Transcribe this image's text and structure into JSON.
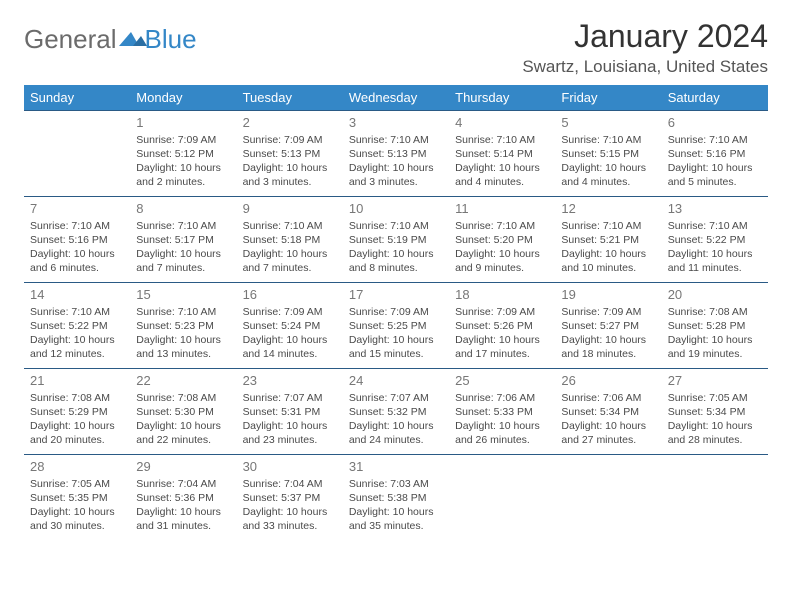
{
  "brand": {
    "general": "General",
    "blue": "Blue",
    "swoosh_color": "#3487c7"
  },
  "title": "January 2024",
  "location": "Swartz, Louisiana, United States",
  "header_bg": "#3487c7",
  "header_fg": "#ffffff",
  "row_border_color": "#2a5a85",
  "text_color": "#4a4a4a",
  "title_color": "#333333",
  "location_color": "#555555",
  "day_headers": [
    "Sunday",
    "Monday",
    "Tuesday",
    "Wednesday",
    "Thursday",
    "Friday",
    "Saturday"
  ],
  "weeks": [
    [
      {
        "day": "",
        "sunrise": "",
        "sunset": "",
        "daylight": ""
      },
      {
        "day": "1",
        "sunrise": "Sunrise: 7:09 AM",
        "sunset": "Sunset: 5:12 PM",
        "daylight": "Daylight: 10 hours and 2 minutes."
      },
      {
        "day": "2",
        "sunrise": "Sunrise: 7:09 AM",
        "sunset": "Sunset: 5:13 PM",
        "daylight": "Daylight: 10 hours and 3 minutes."
      },
      {
        "day": "3",
        "sunrise": "Sunrise: 7:10 AM",
        "sunset": "Sunset: 5:13 PM",
        "daylight": "Daylight: 10 hours and 3 minutes."
      },
      {
        "day": "4",
        "sunrise": "Sunrise: 7:10 AM",
        "sunset": "Sunset: 5:14 PM",
        "daylight": "Daylight: 10 hours and 4 minutes."
      },
      {
        "day": "5",
        "sunrise": "Sunrise: 7:10 AM",
        "sunset": "Sunset: 5:15 PM",
        "daylight": "Daylight: 10 hours and 4 minutes."
      },
      {
        "day": "6",
        "sunrise": "Sunrise: 7:10 AM",
        "sunset": "Sunset: 5:16 PM",
        "daylight": "Daylight: 10 hours and 5 minutes."
      }
    ],
    [
      {
        "day": "7",
        "sunrise": "Sunrise: 7:10 AM",
        "sunset": "Sunset: 5:16 PM",
        "daylight": "Daylight: 10 hours and 6 minutes."
      },
      {
        "day": "8",
        "sunrise": "Sunrise: 7:10 AM",
        "sunset": "Sunset: 5:17 PM",
        "daylight": "Daylight: 10 hours and 7 minutes."
      },
      {
        "day": "9",
        "sunrise": "Sunrise: 7:10 AM",
        "sunset": "Sunset: 5:18 PM",
        "daylight": "Daylight: 10 hours and 7 minutes."
      },
      {
        "day": "10",
        "sunrise": "Sunrise: 7:10 AM",
        "sunset": "Sunset: 5:19 PM",
        "daylight": "Daylight: 10 hours and 8 minutes."
      },
      {
        "day": "11",
        "sunrise": "Sunrise: 7:10 AM",
        "sunset": "Sunset: 5:20 PM",
        "daylight": "Daylight: 10 hours and 9 minutes."
      },
      {
        "day": "12",
        "sunrise": "Sunrise: 7:10 AM",
        "sunset": "Sunset: 5:21 PM",
        "daylight": "Daylight: 10 hours and 10 minutes."
      },
      {
        "day": "13",
        "sunrise": "Sunrise: 7:10 AM",
        "sunset": "Sunset: 5:22 PM",
        "daylight": "Daylight: 10 hours and 11 minutes."
      }
    ],
    [
      {
        "day": "14",
        "sunrise": "Sunrise: 7:10 AM",
        "sunset": "Sunset: 5:22 PM",
        "daylight": "Daylight: 10 hours and 12 minutes."
      },
      {
        "day": "15",
        "sunrise": "Sunrise: 7:10 AM",
        "sunset": "Sunset: 5:23 PM",
        "daylight": "Daylight: 10 hours and 13 minutes."
      },
      {
        "day": "16",
        "sunrise": "Sunrise: 7:09 AM",
        "sunset": "Sunset: 5:24 PM",
        "daylight": "Daylight: 10 hours and 14 minutes."
      },
      {
        "day": "17",
        "sunrise": "Sunrise: 7:09 AM",
        "sunset": "Sunset: 5:25 PM",
        "daylight": "Daylight: 10 hours and 15 minutes."
      },
      {
        "day": "18",
        "sunrise": "Sunrise: 7:09 AM",
        "sunset": "Sunset: 5:26 PM",
        "daylight": "Daylight: 10 hours and 17 minutes."
      },
      {
        "day": "19",
        "sunrise": "Sunrise: 7:09 AM",
        "sunset": "Sunset: 5:27 PM",
        "daylight": "Daylight: 10 hours and 18 minutes."
      },
      {
        "day": "20",
        "sunrise": "Sunrise: 7:08 AM",
        "sunset": "Sunset: 5:28 PM",
        "daylight": "Daylight: 10 hours and 19 minutes."
      }
    ],
    [
      {
        "day": "21",
        "sunrise": "Sunrise: 7:08 AM",
        "sunset": "Sunset: 5:29 PM",
        "daylight": "Daylight: 10 hours and 20 minutes."
      },
      {
        "day": "22",
        "sunrise": "Sunrise: 7:08 AM",
        "sunset": "Sunset: 5:30 PM",
        "daylight": "Daylight: 10 hours and 22 minutes."
      },
      {
        "day": "23",
        "sunrise": "Sunrise: 7:07 AM",
        "sunset": "Sunset: 5:31 PM",
        "daylight": "Daylight: 10 hours and 23 minutes."
      },
      {
        "day": "24",
        "sunrise": "Sunrise: 7:07 AM",
        "sunset": "Sunset: 5:32 PM",
        "daylight": "Daylight: 10 hours and 24 minutes."
      },
      {
        "day": "25",
        "sunrise": "Sunrise: 7:06 AM",
        "sunset": "Sunset: 5:33 PM",
        "daylight": "Daylight: 10 hours and 26 minutes."
      },
      {
        "day": "26",
        "sunrise": "Sunrise: 7:06 AM",
        "sunset": "Sunset: 5:34 PM",
        "daylight": "Daylight: 10 hours and 27 minutes."
      },
      {
        "day": "27",
        "sunrise": "Sunrise: 7:05 AM",
        "sunset": "Sunset: 5:34 PM",
        "daylight": "Daylight: 10 hours and 28 minutes."
      }
    ],
    [
      {
        "day": "28",
        "sunrise": "Sunrise: 7:05 AM",
        "sunset": "Sunset: 5:35 PM",
        "daylight": "Daylight: 10 hours and 30 minutes."
      },
      {
        "day": "29",
        "sunrise": "Sunrise: 7:04 AM",
        "sunset": "Sunset: 5:36 PM",
        "daylight": "Daylight: 10 hours and 31 minutes."
      },
      {
        "day": "30",
        "sunrise": "Sunrise: 7:04 AM",
        "sunset": "Sunset: 5:37 PM",
        "daylight": "Daylight: 10 hours and 33 minutes."
      },
      {
        "day": "31",
        "sunrise": "Sunrise: 7:03 AM",
        "sunset": "Sunset: 5:38 PM",
        "daylight": "Daylight: 10 hours and 35 minutes."
      },
      {
        "day": "",
        "sunrise": "",
        "sunset": "",
        "daylight": ""
      },
      {
        "day": "",
        "sunrise": "",
        "sunset": "",
        "daylight": ""
      },
      {
        "day": "",
        "sunrise": "",
        "sunset": "",
        "daylight": ""
      }
    ]
  ]
}
